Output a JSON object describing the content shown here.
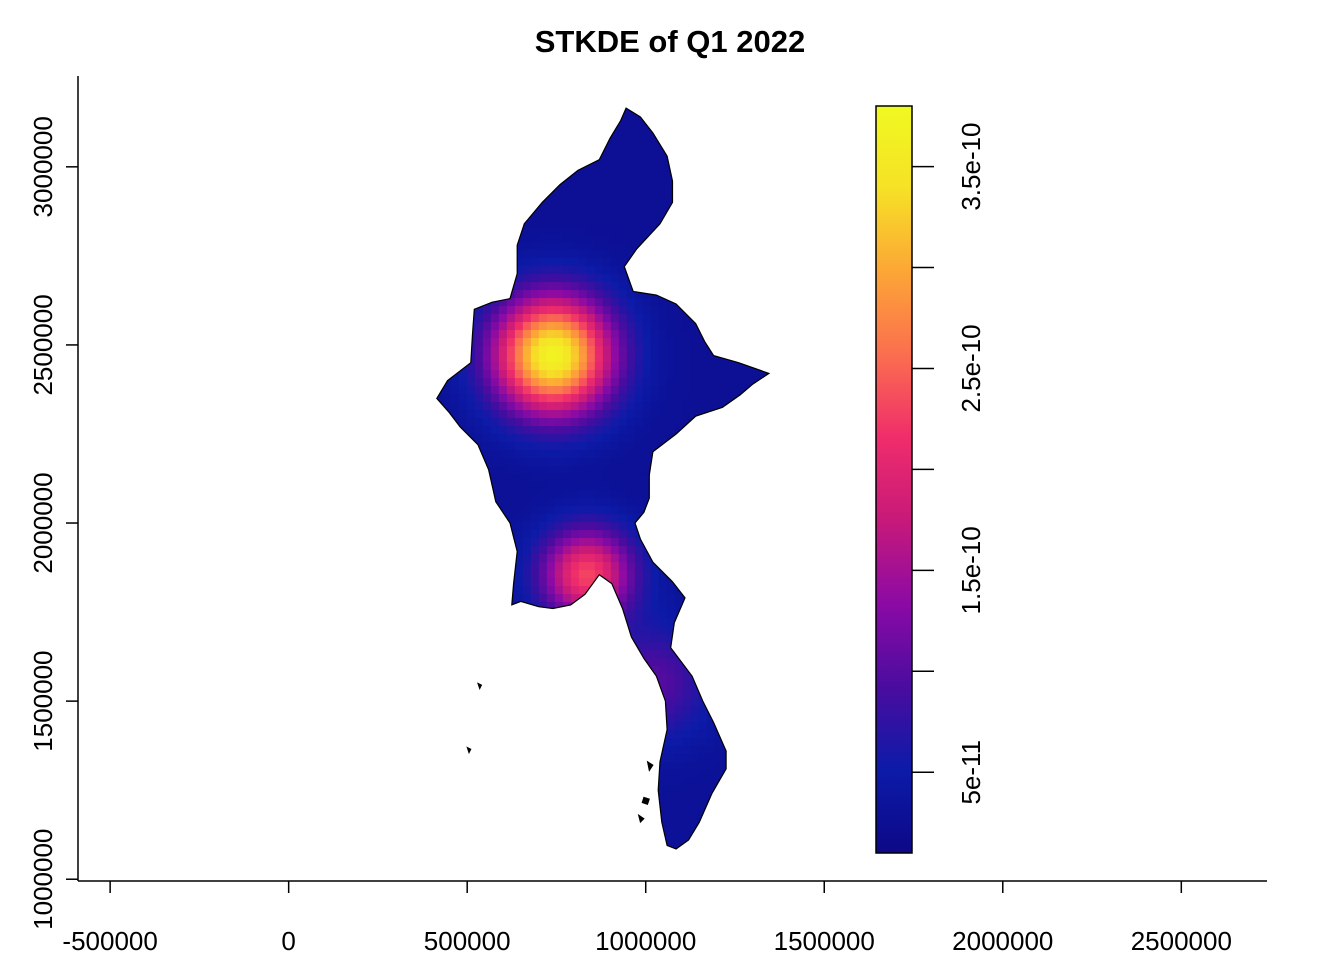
{
  "chart_data": {
    "type": "heatmap",
    "title": "STKDE of Q1 2022",
    "xlabel": "",
    "ylabel": "",
    "xlim": [
      -590000,
      2740000
    ],
    "ylim": [
      995000,
      3255000
    ],
    "x_ticks": [
      {
        "value": -500000,
        "label": "-500000"
      },
      {
        "value": 0,
        "label": "0"
      },
      {
        "value": 500000,
        "label": "500000"
      },
      {
        "value": 1000000,
        "label": "1000000"
      },
      {
        "value": 1500000,
        "label": "1500000"
      },
      {
        "value": 2000000,
        "label": "2000000"
      },
      {
        "value": 2500000,
        "label": "2500000"
      }
    ],
    "y_ticks": [
      {
        "value": 1000000,
        "label": "1000000"
      },
      {
        "value": 1500000,
        "label": "1500000"
      },
      {
        "value": 2000000,
        "label": "2000000"
      },
      {
        "value": 2500000,
        "label": "2500000"
      },
      {
        "value": 3000000,
        "label": "3000000"
      }
    ],
    "colorbar": {
      "range": [
        1e-11,
        3.8e-10
      ],
      "ticks": [
        {
          "value": 5e-11,
          "label": "5e-11"
        },
        {
          "value": 1e-10,
          "label": ""
        },
        {
          "value": 1.5e-10,
          "label": "1.5e-10"
        },
        {
          "value": 2e-10,
          "label": ""
        },
        {
          "value": 2.5e-10,
          "label": "2.5e-10"
        },
        {
          "value": 3e-10,
          "label": ""
        },
        {
          "value": 3.5e-10,
          "label": "3.5e-10"
        }
      ],
      "palette": [
        "#0d0887",
        "#0c1ba8",
        "#4a0c9f",
        "#8b0aa5",
        "#c7197a",
        "#ef2d6b",
        "#fb6e4f",
        "#fca636",
        "#f6e126",
        "#f0f921"
      ]
    },
    "hotspots": [
      {
        "x": 740000,
        "y": 2470000,
        "peak": 3.7e-10,
        "sigma": 115000
      },
      {
        "x": 835000,
        "y": 1855000,
        "peak": 2.3e-10,
        "sigma": 90000
      },
      {
        "x": 1020000,
        "y": 1550000,
        "peak": 1e-10,
        "sigma": 110000
      }
    ],
    "boundary": [
      [
        945000,
        3165000
      ],
      [
        985000,
        3140000
      ],
      [
        1020000,
        3095000
      ],
      [
        1060000,
        3030000
      ],
      [
        1075000,
        2960000
      ],
      [
        1075000,
        2900000
      ],
      [
        1040000,
        2840000
      ],
      [
        975000,
        2770000
      ],
      [
        940000,
        2720000
      ],
      [
        965000,
        2650000
      ],
      [
        1030000,
        2640000
      ],
      [
        1085000,
        2615000
      ],
      [
        1140000,
        2560000
      ],
      [
        1165000,
        2510000
      ],
      [
        1190000,
        2470000
      ],
      [
        1260000,
        2450000
      ],
      [
        1345000,
        2420000
      ],
      [
        1300000,
        2390000
      ],
      [
        1265000,
        2360000
      ],
      [
        1215000,
        2325000
      ],
      [
        1140000,
        2300000
      ],
      [
        1085000,
        2250000
      ],
      [
        1020000,
        2200000
      ],
      [
        1010000,
        2135000
      ],
      [
        1010000,
        2070000
      ],
      [
        995000,
        2030000
      ],
      [
        970000,
        2000000
      ],
      [
        985000,
        1955000
      ],
      [
        1020000,
        1890000
      ],
      [
        1075000,
        1835000
      ],
      [
        1110000,
        1790000
      ],
      [
        1080000,
        1720000
      ],
      [
        1070000,
        1650000
      ],
      [
        1130000,
        1570000
      ],
      [
        1160000,
        1500000
      ],
      [
        1190000,
        1440000
      ],
      [
        1225000,
        1360000
      ],
      [
        1225000,
        1310000
      ],
      [
        1185000,
        1240000
      ],
      [
        1150000,
        1160000
      ],
      [
        1120000,
        1110000
      ],
      [
        1085000,
        1085000
      ],
      [
        1060000,
        1095000
      ],
      [
        1045000,
        1160000
      ],
      [
        1035000,
        1250000
      ],
      [
        1040000,
        1330000
      ],
      [
        1060000,
        1420000
      ],
      [
        1055000,
        1500000
      ],
      [
        1030000,
        1570000
      ],
      [
        995000,
        1620000
      ],
      [
        960000,
        1680000
      ],
      [
        935000,
        1760000
      ],
      [
        905000,
        1830000
      ],
      [
        870000,
        1855000
      ],
      [
        830000,
        1800000
      ],
      [
        790000,
        1770000
      ],
      [
        740000,
        1760000
      ],
      [
        700000,
        1765000
      ],
      [
        650000,
        1780000
      ],
      [
        625000,
        1770000
      ],
      [
        630000,
        1830000
      ],
      [
        640000,
        1920000
      ],
      [
        620000,
        2000000
      ],
      [
        580000,
        2060000
      ],
      [
        560000,
        2150000
      ],
      [
        530000,
        2220000
      ],
      [
        480000,
        2270000
      ],
      [
        450000,
        2310000
      ],
      [
        415000,
        2350000
      ],
      [
        445000,
        2400000
      ],
      [
        510000,
        2450000
      ],
      [
        515000,
        2530000
      ],
      [
        520000,
        2600000
      ],
      [
        570000,
        2620000
      ],
      [
        620000,
        2630000
      ],
      [
        640000,
        2700000
      ],
      [
        640000,
        2780000
      ],
      [
        660000,
        2840000
      ],
      [
        710000,
        2900000
      ],
      [
        760000,
        2950000
      ],
      [
        810000,
        2990000
      ],
      [
        870000,
        3020000
      ],
      [
        900000,
        3080000
      ],
      [
        930000,
        3130000
      ]
    ],
    "islands": [
      [
        [
          530000,
          1550000
        ],
        [
          540000,
          1545000
        ],
        [
          535000,
          1535000
        ]
      ],
      [
        [
          500000,
          1370000
        ],
        [
          510000,
          1365000
        ],
        [
          505000,
          1355000
        ]
      ],
      [
        [
          995000,
          1230000
        ],
        [
          1010000,
          1225000
        ],
        [
          1005000,
          1210000
        ],
        [
          990000,
          1215000
        ]
      ],
      [
        [
          1005000,
          1330000
        ],
        [
          1020000,
          1320000
        ],
        [
          1010000,
          1305000
        ]
      ],
      [
        [
          980000,
          1180000
        ],
        [
          995000,
          1170000
        ],
        [
          985000,
          1160000
        ]
      ]
    ]
  }
}
